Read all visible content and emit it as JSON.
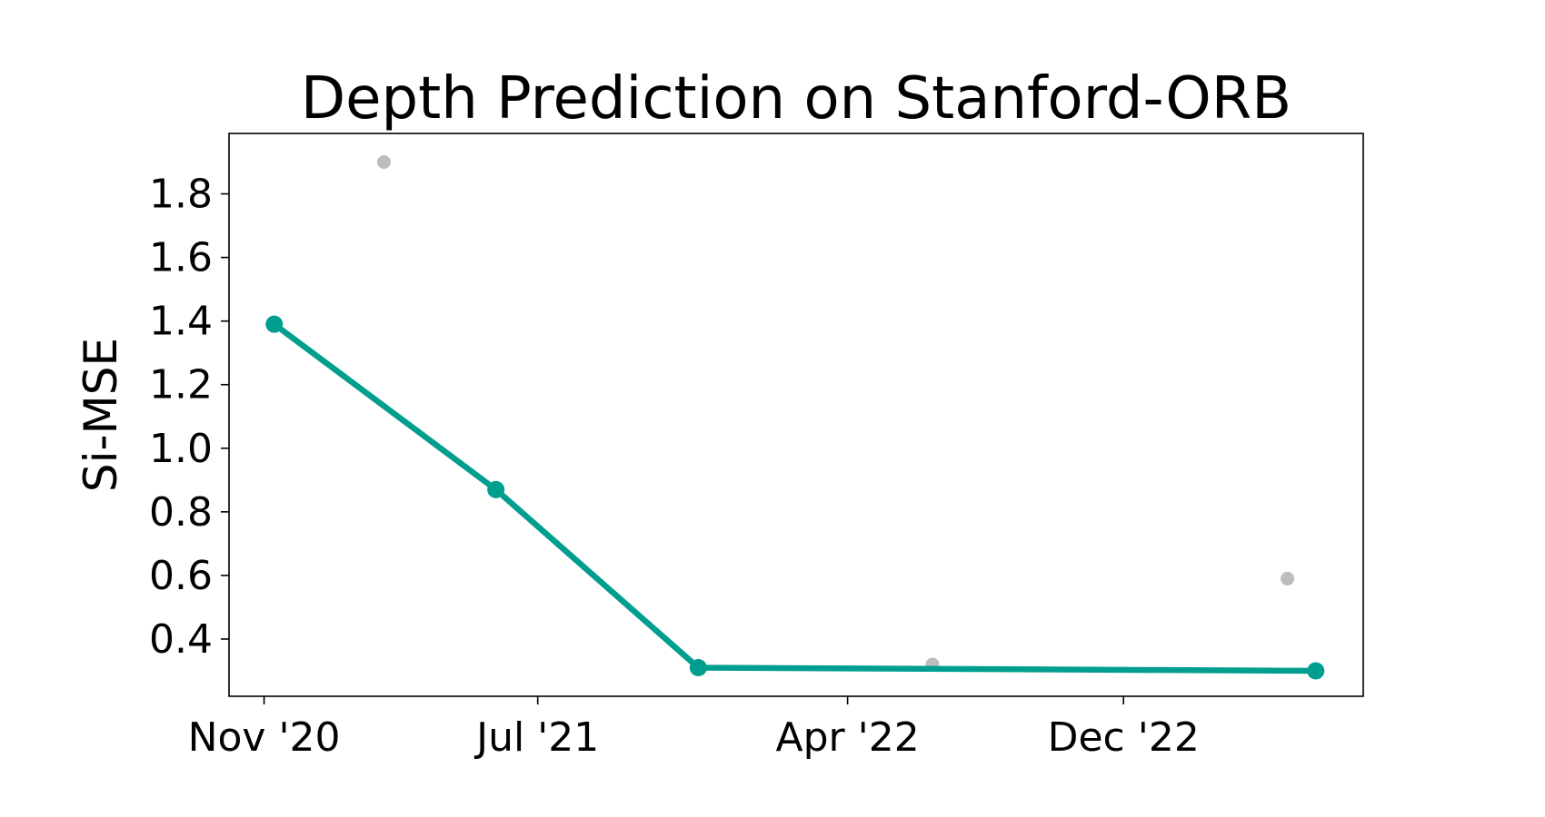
{
  "chart_data": {
    "type": "scatter",
    "title": "Depth Prediction on Stanford-ORB",
    "xlabel": "",
    "ylabel": "Si-MSE",
    "x_ticks": [
      {
        "date": "2020-11-01",
        "label": "Nov '20"
      },
      {
        "date": "2021-07-01",
        "label": "Jul '21"
      },
      {
        "date": "2022-04-01",
        "label": "Apr '22"
      },
      {
        "date": "2022-12-01",
        "label": "Dec '22"
      }
    ],
    "y_ticks": [
      0.4,
      0.6,
      0.8,
      1.0,
      1.2,
      1.4,
      1.6,
      1.8
    ],
    "xlim": [
      "2020-10-01",
      "2023-07-01"
    ],
    "ylim": [
      0.22,
      1.99
    ],
    "grid": false,
    "series": [
      {
        "color": "#009e8f",
        "values": [
          {
            "x": "2020-11-10",
            "y": 1.39
          },
          {
            "x": "2021-05-25",
            "y": 0.87
          },
          {
            "x": "2021-11-20",
            "y": 0.31
          },
          {
            "x": "2023-05-20",
            "y": 0.3
          }
        ]
      },
      {
        "color": "#bdbdbd",
        "values": [
          {
            "x": "2021-02-15",
            "y": 1.9
          },
          {
            "x": "2022-06-15",
            "y": 0.32
          },
          {
            "x": "2023-04-25",
            "y": 0.59
          }
        ]
      }
    ]
  }
}
